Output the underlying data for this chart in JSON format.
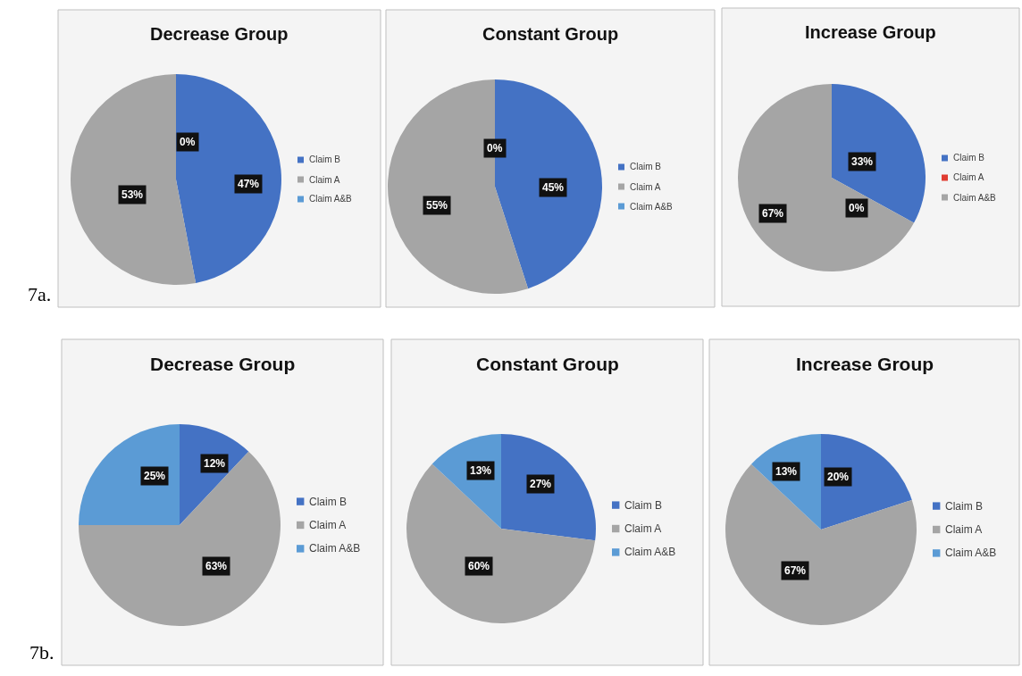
{
  "chart_data": [
    {
      "type": "pie",
      "title": "Decrease Group",
      "categories": [
        "Claim B",
        "Claim A",
        "Claim A&B"
      ],
      "values": [
        47,
        53,
        0
      ],
      "value_labels": [
        "47%",
        "53%",
        "0%"
      ],
      "colors": [
        "#4472c4",
        "#a5a5a5",
        "#5b9bd5"
      ],
      "legend": "right",
      "annotations": [
        "7a."
      ]
    },
    {
      "type": "pie",
      "title": "Constant Group",
      "categories": [
        "Claim B",
        "Claim A",
        "Claim A&B"
      ],
      "values": [
        45,
        55,
        0
      ],
      "value_labels": [
        "45%",
        "55%",
        "0%"
      ],
      "colors": [
        "#4472c4",
        "#a5a5a5",
        "#5b9bd5"
      ],
      "legend": "right"
    },
    {
      "type": "pie",
      "title": "Increase Group",
      "categories": [
        "Claim B",
        "Claim A",
        "Claim A&B"
      ],
      "values": [
        33,
        0,
        67
      ],
      "value_labels": [
        "33%",
        "0%",
        "67%"
      ],
      "colors": [
        "#4472c4",
        "#e03c31",
        "#a5a5a5"
      ],
      "legend": "right"
    },
    {
      "type": "pie",
      "title": "Decrease Group",
      "categories": [
        "Claim B",
        "Claim A",
        "Claim A&B"
      ],
      "values": [
        12,
        63,
        25
      ],
      "value_labels": [
        "12%",
        "63%",
        "25%"
      ],
      "colors": [
        "#4472c4",
        "#a5a5a5",
        "#5b9bd5"
      ],
      "legend": "right",
      "annotations": [
        "7b."
      ]
    },
    {
      "type": "pie",
      "title": "Constant Group",
      "categories": [
        "Claim B",
        "Claim A",
        "Claim A&B"
      ],
      "values": [
        27,
        60,
        13
      ],
      "value_labels": [
        "27%",
        "60%",
        "13%"
      ],
      "colors": [
        "#4472c4",
        "#a5a5a5",
        "#5b9bd5"
      ],
      "legend": "right"
    },
    {
      "type": "pie",
      "title": "Increase Group",
      "categories": [
        "Claim B",
        "Claim A",
        "Claim A&B"
      ],
      "values": [
        20,
        67,
        13
      ],
      "value_labels": [
        "20%",
        "67%",
        "13%"
      ],
      "colors": [
        "#4472c4",
        "#a5a5a5",
        "#5b9bd5"
      ],
      "legend": "right"
    }
  ]
}
